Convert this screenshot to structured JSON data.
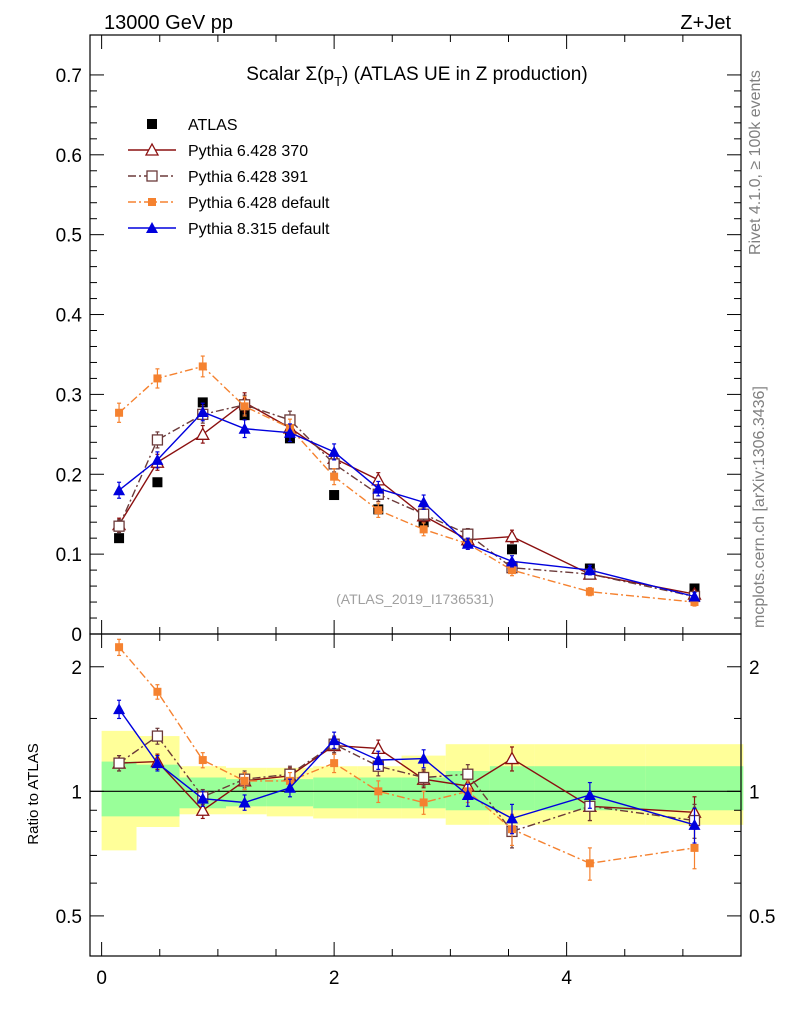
{
  "header": {
    "left": "13000 GeV pp",
    "right": "Z+Jet"
  },
  "side_text": {
    "top": "Rivet 4.1.0, ≥ 100k events",
    "bottom": "mcplots.cern.ch [arXiv:1306.3436]"
  },
  "colors": {
    "atlas": "#000000",
    "p370": "#8b1010",
    "p391": "#6b3a3a",
    "p6def": "#f58230",
    "p8def": "#0000dd",
    "band_inner": "#99ff99",
    "band_outer": "#ffff99"
  },
  "chart_data": [
    {
      "type": "scatter",
      "title_prefix": "Scalar Σ(p",
      "title_sub": "T",
      "title_suffix": ") (ATLAS UE in Z production)",
      "watermark": "(ATLAS_2019_I1736531)",
      "xlim": [
        -0.1,
        5.5
      ],
      "ylim": [
        0,
        0.75
      ],
      "yticks": [
        "0",
        "0.1",
        "0.2",
        "0.3",
        "0.4",
        "0.5",
        "0.6",
        "0.7"
      ],
      "ytick_values": [
        0,
        0.1,
        0.2,
        0.3,
        0.4,
        0.5,
        0.6,
        0.7
      ],
      "x": [
        0.15,
        0.48,
        0.87,
        1.23,
        1.62,
        2.0,
        2.38,
        2.77,
        3.15,
        3.53,
        4.2,
        5.1
      ],
      "series": [
        {
          "name": "ATLAS",
          "key": "atlas",
          "marker": "square-filled",
          "line": "none",
          "values": [
            0.12,
            0.19,
            0.29,
            0.274,
            0.245,
            0.174,
            0.156,
            0.14,
            0.115,
            0.106,
            0.082,
            0.057
          ],
          "errors": [
            0.004,
            0.004,
            0.005,
            0.005,
            0.005,
            0.004,
            0.004,
            0.004,
            0.003,
            0.003,
            0.003,
            0.002
          ]
        },
        {
          "name": "Pythia 6.428 370",
          "key": "p370",
          "marker": "triangle-open",
          "line": "solid",
          "values": [
            0.137,
            0.215,
            0.25,
            0.29,
            0.258,
            0.22,
            0.193,
            0.148,
            0.118,
            0.122,
            0.075,
            0.05
          ],
          "errors": [
            0.008,
            0.01,
            0.011,
            0.012,
            0.011,
            0.01,
            0.009,
            0.008,
            0.007,
            0.008,
            0.006,
            0.005
          ]
        },
        {
          "name": "Pythia 6.428 391",
          "key": "p391",
          "marker": "square-open",
          "line": "dashdot",
          "values": [
            0.135,
            0.243,
            0.275,
            0.287,
            0.268,
            0.213,
            0.175,
            0.15,
            0.125,
            0.083,
            0.075,
            0.047
          ],
          "errors": [
            0.008,
            0.01,
            0.011,
            0.012,
            0.011,
            0.01,
            0.009,
            0.008,
            0.007,
            0.007,
            0.006,
            0.005
          ]
        },
        {
          "name": "Pythia 6.428 default",
          "key": "p6def",
          "marker": "square-small",
          "line": "dashdot",
          "values": [
            0.277,
            0.32,
            0.335,
            0.285,
            0.258,
            0.197,
            0.155,
            0.131,
            0.113,
            0.08,
            0.053,
            0.04
          ],
          "errors": [
            0.012,
            0.012,
            0.013,
            0.012,
            0.011,
            0.01,
            0.009,
            0.008,
            0.007,
            0.007,
            0.005,
            0.005
          ]
        },
        {
          "name": "Pythia 8.315 default",
          "key": "p8def",
          "marker": "triangle-filled",
          "line": "solid",
          "values": [
            0.18,
            0.218,
            0.278,
            0.257,
            0.252,
            0.228,
            0.182,
            0.165,
            0.113,
            0.091,
            0.08,
            0.047
          ],
          "errors": [
            0.01,
            0.01,
            0.011,
            0.011,
            0.011,
            0.01,
            0.009,
            0.009,
            0.007,
            0.007,
            0.006,
            0.005
          ]
        }
      ]
    },
    {
      "type": "scatter",
      "ylabel": "Ratio to ATLAS",
      "xlim": [
        -0.1,
        5.5
      ],
      "ylim": [
        0.4,
        2.4
      ],
      "ylog": true,
      "reference": 1,
      "yticks": [
        "0.5",
        "1",
        "2"
      ],
      "ytick_values": [
        0.5,
        1,
        2
      ],
      "xticks": [
        "0",
        "2",
        "4"
      ],
      "xtick_values": [
        0,
        2,
        4
      ],
      "bin_edges": [
        0,
        0.3,
        0.67,
        1.07,
        1.42,
        1.82,
        2.2,
        2.58,
        2.96,
        3.34,
        3.72,
        4.68,
        5.52
      ],
      "band_inner_low": [
        0.87,
        0.87,
        0.91,
        0.92,
        0.92,
        0.91,
        0.91,
        0.91,
        0.9,
        0.9,
        0.9,
        0.9
      ],
      "band_inner_high": [
        1.18,
        1.16,
        1.08,
        1.07,
        1.07,
        1.08,
        1.08,
        1.08,
        1.12,
        1.15,
        1.15,
        1.15
      ],
      "band_outer_low": [
        0.72,
        0.82,
        0.88,
        0.88,
        0.87,
        0.86,
        0.86,
        0.86,
        0.83,
        0.83,
        0.83,
        0.83
      ],
      "band_outer_high": [
        1.4,
        1.36,
        1.15,
        1.14,
        1.14,
        1.15,
        1.15,
        1.22,
        1.3,
        1.3,
        1.3,
        1.3
      ],
      "x": [
        0.15,
        0.48,
        0.87,
        1.23,
        1.62,
        2.0,
        2.38,
        2.77,
        3.15,
        3.53,
        4.2,
        5.1
      ],
      "series": [
        {
          "key": "p370",
          "marker": "triangle-open",
          "line": "solid",
          "values": [
            1.17,
            1.18,
            0.9,
            1.06,
            1.09,
            1.29,
            1.27,
            1.07,
            1.03,
            1.2,
            0.92,
            0.89
          ],
          "errors": [
            0.05,
            0.05,
            0.04,
            0.05,
            0.05,
            0.06,
            0.06,
            0.05,
            0.06,
            0.08,
            0.07,
            0.08
          ]
        },
        {
          "key": "p391",
          "marker": "square-open",
          "line": "dashdot",
          "values": [
            1.17,
            1.36,
            0.97,
            1.07,
            1.1,
            1.3,
            1.15,
            1.08,
            1.1,
            0.8,
            0.92,
            0.85
          ],
          "errors": [
            0.05,
            0.06,
            0.04,
            0.05,
            0.05,
            0.06,
            0.06,
            0.05,
            0.06,
            0.07,
            0.07,
            0.08
          ]
        },
        {
          "key": "p6def",
          "marker": "square-small",
          "line": "dashdot",
          "values": [
            2.23,
            1.74,
            1.19,
            1.06,
            1.06,
            1.17,
            1.0,
            0.94,
            1.0,
            0.81,
            0.67,
            0.73
          ],
          "errors": [
            0.1,
            0.07,
            0.05,
            0.05,
            0.05,
            0.06,
            0.06,
            0.06,
            0.06,
            0.07,
            0.06,
            0.08
          ]
        },
        {
          "key": "p8def",
          "marker": "triangle-filled",
          "line": "solid",
          "values": [
            1.58,
            1.17,
            0.96,
            0.94,
            1.02,
            1.33,
            1.19,
            1.2,
            0.98,
            0.86,
            0.98,
            0.83
          ],
          "errors": [
            0.08,
            0.05,
            0.04,
            0.04,
            0.05,
            0.06,
            0.06,
            0.06,
            0.06,
            0.07,
            0.07,
            0.08
          ]
        }
      ]
    }
  ]
}
